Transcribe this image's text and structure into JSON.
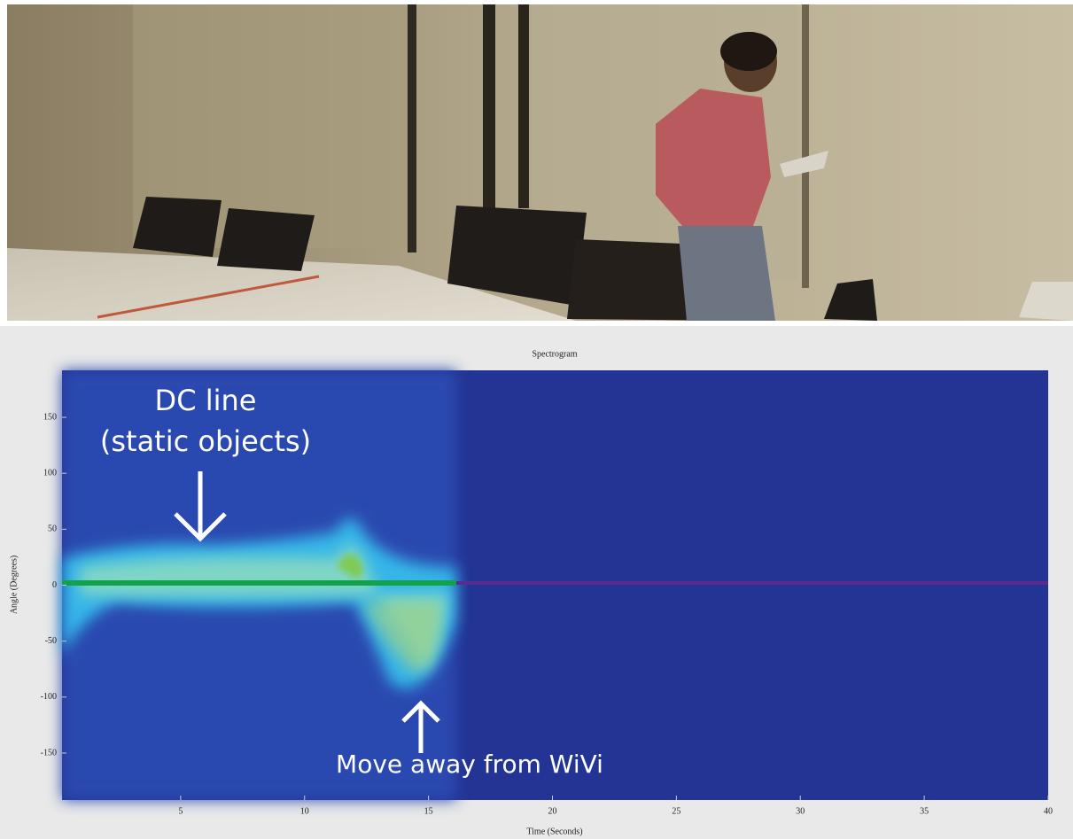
{
  "chart_data": {
    "type": "spectrogram",
    "title": "Spectrogram",
    "x_label": "Time (Seconds)",
    "y_label": "Angle (Degrees)",
    "xlim": [
      0,
      40
    ],
    "xticks": [
      5,
      10,
      15,
      20,
      25,
      30,
      35,
      40
    ],
    "ylim": [
      -192,
      192
    ],
    "yticks": [
      150,
      100,
      50,
      0,
      -50,
      -100,
      -150
    ],
    "annotations": [
      "DC line",
      "(static objects)",
      "Move away from WiVi"
    ],
    "grid": false
  }
}
